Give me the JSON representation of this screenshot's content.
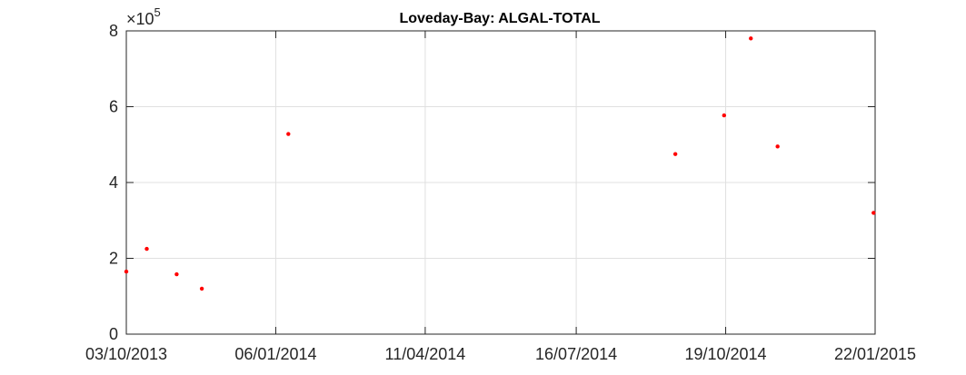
{
  "chart_data": {
    "type": "scatter",
    "title": "Loveday-Bay: ALGAL-TOTAL",
    "xlabel": "",
    "ylabel": "",
    "x_tick_labels": [
      "03/10/2013",
      "06/01/2014",
      "11/04/2014",
      "16/07/2014",
      "19/10/2014",
      "22/01/2015"
    ],
    "x_ticks": [
      "2013-10-03",
      "2014-01-06",
      "2014-04-11",
      "2014-07-16",
      "2014-10-19",
      "2015-01-22"
    ],
    "xlim": [
      "2013-10-03",
      "2015-01-22"
    ],
    "y_ticks": [
      0,
      2,
      4,
      6,
      8
    ],
    "y_tick_labels": [
      "0",
      "2",
      "4",
      "6",
      "8"
    ],
    "ylim": [
      0,
      8
    ],
    "y_multiplier": {
      "base": "10",
      "exponent": "5"
    },
    "grid": true,
    "marker_color": "#ff0000",
    "series": [
      {
        "points": [
          {
            "x": "2013-10-03",
            "y": 1.65
          },
          {
            "x": "2013-10-16",
            "y": 2.25
          },
          {
            "x": "2013-11-04",
            "y": 1.58
          },
          {
            "x": "2013-11-20",
            "y": 1.2
          },
          {
            "x": "2014-01-14",
            "y": 5.28
          },
          {
            "x": "2014-09-17",
            "y": 4.75
          },
          {
            "x": "2014-10-18",
            "y": 5.77
          },
          {
            "x": "2014-11-04",
            "y": 7.8
          },
          {
            "x": "2014-11-21",
            "y": 4.95
          },
          {
            "x": "2015-01-21",
            "y": 3.2
          }
        ]
      }
    ]
  }
}
